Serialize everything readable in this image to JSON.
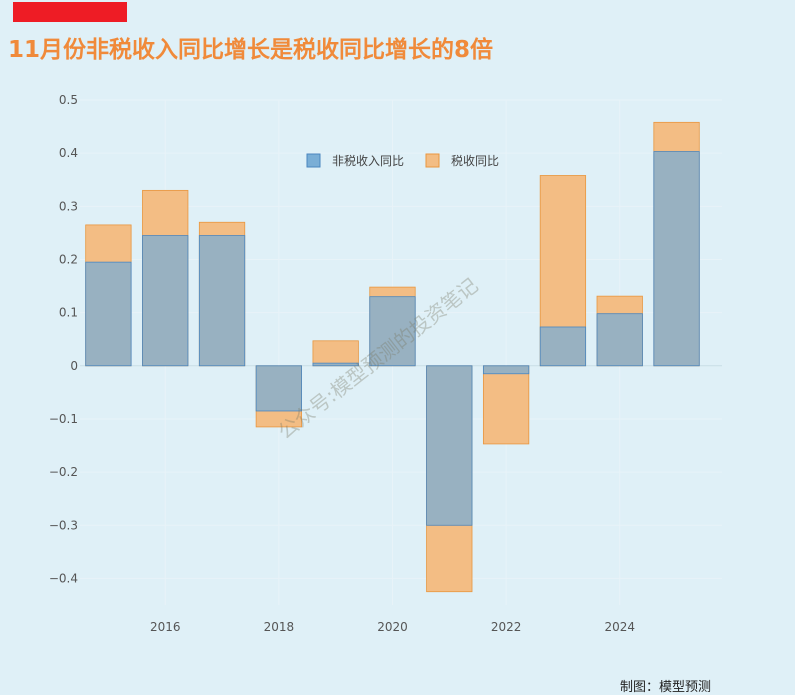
{
  "header": {
    "title": "11月份非税收入同比增长是税收同比增长的8倍"
  },
  "footer": {
    "credit": "制图：模型预测"
  },
  "watermark": {
    "text": "公众号:模型预测的投资笔记"
  },
  "colors": {
    "non_tax": "#7aaed6",
    "non_tax_border": "#4a86bf",
    "tax": "#f3bd84",
    "tax_border": "#e8963f",
    "overlap": "#c9a079",
    "title": "#f08a3a"
  },
  "chart_data": {
    "type": "bar",
    "barmode": "overlay",
    "title": "11月份非税收入同比增长是税收同比增长的8倍",
    "x": [
      2015,
      2016,
      2017,
      2018,
      2019,
      2020,
      2021,
      2022,
      2023,
      2024,
      2025
    ],
    "series": [
      {
        "name": "非税收入同比",
        "values": [
          0.195,
          0.245,
          0.245,
          -0.085,
          0.005,
          0.13,
          -0.3,
          -0.015,
          0.073,
          0.098,
          0.403
        ]
      },
      {
        "name": "税收同比",
        "values": [
          0.265,
          0.33,
          0.27,
          -0.115,
          0.047,
          0.148,
          -0.425,
          -0.147,
          0.358,
          0.131,
          0.458
        ]
      }
    ],
    "xticks": [
      2016,
      2018,
      2020,
      2022,
      2024
    ],
    "yticks": [
      -0.4,
      -0.3,
      -0.2,
      -0.1,
      0,
      0.1,
      0.2,
      0.3,
      0.4,
      0.5
    ],
    "ytick_labels": [
      "−0.4",
      "−0.3",
      "−0.2",
      "−0.1",
      "0",
      "0.1",
      "0.2",
      "0.3",
      "0.4",
      "0.5"
    ],
    "xlim": [
      2014.5,
      2025.8
    ],
    "ylim": [
      -0.45,
      0.5
    ],
    "legend_position": "top-center",
    "grid": true,
    "xlabel": "",
    "ylabel": ""
  }
}
